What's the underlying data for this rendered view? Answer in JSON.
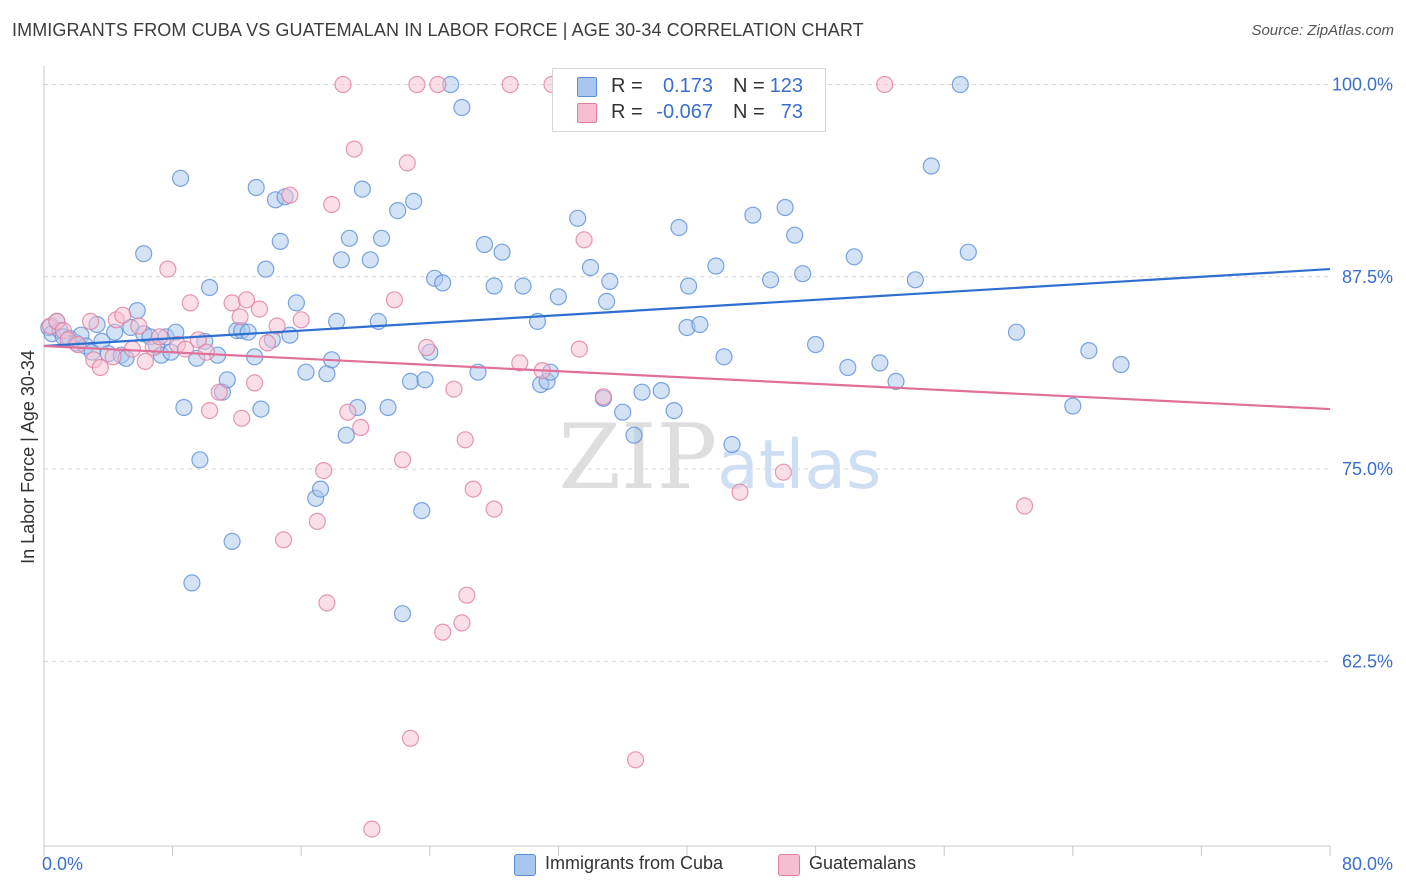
{
  "title": "IMMIGRANTS FROM CUBA VS GUATEMALAN IN LABOR FORCE | AGE 30-34 CORRELATION CHART",
  "source": "Source: ZipAtlas.com",
  "watermark": "ZIPatlas",
  "legend": {
    "r_label": "R =",
    "n_label": "N =",
    "series": [
      {
        "name": "Immigrants from Cuba",
        "r": "0.173",
        "n": "123",
        "color": "#a9c6ee",
        "edge": "#5b8ed8"
      },
      {
        "name": "Guatemalans",
        "r": "-0.067",
        "n": "73",
        "color": "#f6bfd1",
        "edge": "#e07ea0"
      }
    ]
  },
  "chart_data": {
    "type": "scatter",
    "title": "IMMIGRANTS FROM CUBA VS GUATEMALAN IN LABOR FORCE | AGE 30-34 CORRELATION CHART",
    "xlabel": "",
    "ylabel": "In Labor Force | Age 30-34",
    "xlim": [
      0,
      80
    ],
    "ylim": [
      50.5,
      101.2
    ],
    "x_tick_labels": [
      "0.0%",
      "80.0%"
    ],
    "y_ticks": [
      62.5,
      75.0,
      87.5,
      100.0
    ],
    "y_tick_labels": [
      "62.5%",
      "75.0%",
      "87.5%",
      "100.0%"
    ],
    "grid": true,
    "legend_position": "top-center",
    "series": [
      {
        "name": "Immigrants from Cuba",
        "color": "#5b8ed8",
        "trend": {
          "x": [
            0,
            80
          ],
          "y": [
            83.0,
            88.0
          ]
        },
        "points": [
          [
            0.3,
            84.2
          ],
          [
            0.5,
            83.8
          ],
          [
            0.8,
            84.6
          ],
          [
            1.0,
            84.0
          ],
          [
            1.2,
            83.6
          ],
          [
            1.6,
            83.5
          ],
          [
            2.0,
            83.2
          ],
          [
            2.3,
            83.7
          ],
          [
            2.6,
            83.0
          ],
          [
            3.0,
            82.6
          ],
          [
            3.3,
            84.4
          ],
          [
            3.6,
            83.3
          ],
          [
            4.0,
            82.5
          ],
          [
            4.4,
            83.9
          ],
          [
            4.8,
            82.4
          ],
          [
            5.1,
            82.2
          ],
          [
            5.4,
            84.2
          ],
          [
            5.8,
            85.3
          ],
          [
            6.2,
            83.8
          ],
          [
            6.6,
            83.6
          ],
          [
            6.2,
            89.0
          ],
          [
            7.0,
            83.0
          ],
          [
            7.3,
            82.4
          ],
          [
            7.6,
            83.6
          ],
          [
            7.9,
            82.6
          ],
          [
            8.2,
            83.9
          ],
          [
            8.5,
            93.9
          ],
          [
            8.7,
            79.0
          ],
          [
            9.2,
            67.6
          ],
          [
            9.5,
            82.2
          ],
          [
            9.7,
            75.6
          ],
          [
            10.0,
            83.3
          ],
          [
            10.3,
            86.8
          ],
          [
            10.8,
            82.4
          ],
          [
            11.1,
            80.0
          ],
          [
            11.4,
            80.8
          ],
          [
            11.7,
            70.3
          ],
          [
            12.0,
            84.0
          ],
          [
            12.3,
            84.0
          ],
          [
            12.7,
            83.9
          ],
          [
            13.1,
            82.3
          ],
          [
            13.2,
            93.3
          ],
          [
            13.5,
            78.9
          ],
          [
            13.8,
            88.0
          ],
          [
            14.2,
            83.4
          ],
          [
            14.4,
            92.5
          ],
          [
            14.7,
            89.8
          ],
          [
            15.0,
            92.7
          ],
          [
            15.3,
            83.7
          ],
          [
            15.7,
            85.8
          ],
          [
            16.3,
            81.3
          ],
          [
            16.9,
            73.1
          ],
          [
            17.2,
            73.7
          ],
          [
            17.6,
            81.2
          ],
          [
            17.9,
            82.1
          ],
          [
            18.2,
            84.6
          ],
          [
            18.5,
            88.6
          ],
          [
            18.8,
            77.2
          ],
          [
            19.0,
            90.0
          ],
          [
            19.5,
            79.0
          ],
          [
            19.8,
            93.2
          ],
          [
            20.3,
            88.6
          ],
          [
            20.8,
            84.6
          ],
          [
            21.0,
            90.0
          ],
          [
            21.4,
            79.0
          ],
          [
            22.0,
            91.8
          ],
          [
            22.3,
            65.6
          ],
          [
            22.8,
            80.7
          ],
          [
            23.0,
            92.4
          ],
          [
            23.5,
            72.3
          ],
          [
            23.7,
            80.8
          ],
          [
            24.0,
            82.6
          ],
          [
            24.3,
            87.4
          ],
          [
            24.8,
            87.1
          ],
          [
            25.3,
            100.0
          ],
          [
            26.0,
            98.5
          ],
          [
            27.0,
            81.3
          ],
          [
            27.4,
            89.6
          ],
          [
            28.0,
            86.9
          ],
          [
            28.5,
            89.1
          ],
          [
            29.8,
            86.9
          ],
          [
            30.7,
            84.6
          ],
          [
            30.9,
            80.5
          ],
          [
            31.3,
            80.7
          ],
          [
            31.5,
            81.3
          ],
          [
            32.0,
            86.2
          ],
          [
            32.6,
            100.0
          ],
          [
            33.2,
            91.3
          ],
          [
            34.0,
            88.1
          ],
          [
            34.8,
            79.6
          ],
          [
            35.0,
            85.9
          ],
          [
            35.2,
            87.2
          ],
          [
            36.0,
            78.7
          ],
          [
            36.7,
            77.2
          ],
          [
            37.2,
            80.0
          ],
          [
            38.0,
            100.0
          ],
          [
            38.4,
            80.1
          ],
          [
            39.2,
            78.8
          ],
          [
            39.5,
            90.7
          ],
          [
            40.0,
            84.2
          ],
          [
            40.1,
            86.9
          ],
          [
            40.8,
            84.4
          ],
          [
            41.8,
            88.2
          ],
          [
            42.3,
            82.3
          ],
          [
            42.8,
            76.6
          ],
          [
            44.1,
            91.5
          ],
          [
            45.2,
            87.3
          ],
          [
            46.1,
            92.0
          ],
          [
            46.7,
            90.2
          ],
          [
            47.2,
            87.7
          ],
          [
            48.0,
            83.1
          ],
          [
            50.0,
            81.6
          ],
          [
            50.4,
            88.8
          ],
          [
            52.0,
            81.9
          ],
          [
            53.0,
            80.7
          ],
          [
            54.2,
            87.3
          ],
          [
            55.2,
            94.7
          ],
          [
            57.0,
            100.0
          ],
          [
            57.5,
            89.1
          ],
          [
            60.5,
            83.9
          ],
          [
            64.0,
            79.1
          ],
          [
            65.0,
            82.7
          ],
          [
            67.0,
            81.8
          ]
        ]
      },
      {
        "name": "Guatemalans",
        "color": "#e07ea0",
        "trend": {
          "x": [
            0,
            80
          ],
          "y": [
            83.0,
            78.9
          ]
        },
        "points": [
          [
            0.4,
            84.3
          ],
          [
            0.8,
            84.6
          ],
          [
            1.2,
            84.0
          ],
          [
            1.5,
            83.4
          ],
          [
            2.1,
            83.1
          ],
          [
            2.9,
            84.6
          ],
          [
            3.1,
            82.1
          ],
          [
            3.5,
            81.6
          ],
          [
            4.3,
            82.3
          ],
          [
            4.5,
            84.7
          ],
          [
            4.9,
            85.0
          ],
          [
            5.5,
            82.8
          ],
          [
            5.9,
            84.3
          ],
          [
            6.3,
            82.0
          ],
          [
            6.8,
            82.9
          ],
          [
            7.2,
            83.6
          ],
          [
            7.7,
            88.0
          ],
          [
            8.3,
            83.1
          ],
          [
            8.8,
            82.8
          ],
          [
            9.1,
            85.8
          ],
          [
            9.6,
            83.4
          ],
          [
            10.1,
            82.6
          ],
          [
            10.3,
            78.8
          ],
          [
            10.9,
            80.0
          ],
          [
            11.7,
            85.8
          ],
          [
            12.2,
            84.9
          ],
          [
            12.3,
            78.3
          ],
          [
            12.6,
            86.0
          ],
          [
            13.1,
            80.6
          ],
          [
            13.4,
            85.4
          ],
          [
            13.9,
            83.2
          ],
          [
            14.5,
            84.3
          ],
          [
            14.9,
            70.4
          ],
          [
            15.3,
            92.8
          ],
          [
            16.0,
            84.7
          ],
          [
            17.0,
            71.6
          ],
          [
            17.4,
            74.9
          ],
          [
            17.6,
            66.3
          ],
          [
            17.9,
            92.2
          ],
          [
            18.6,
            100.0
          ],
          [
            18.9,
            78.7
          ],
          [
            19.3,
            95.8
          ],
          [
            19.7,
            77.7
          ],
          [
            20.4,
            51.6
          ],
          [
            21.8,
            86.0
          ],
          [
            22.3,
            75.6
          ],
          [
            22.6,
            94.9
          ],
          [
            22.8,
            57.5
          ],
          [
            23.2,
            100.0
          ],
          [
            23.8,
            82.9
          ],
          [
            24.5,
            100.0
          ],
          [
            24.8,
            64.4
          ],
          [
            25.5,
            80.2
          ],
          [
            26.0,
            65.0
          ],
          [
            26.2,
            76.9
          ],
          [
            26.3,
            66.8
          ],
          [
            26.7,
            73.7
          ],
          [
            28.0,
            72.4
          ],
          [
            29.0,
            100.0
          ],
          [
            29.6,
            81.9
          ],
          [
            31.0,
            81.4
          ],
          [
            31.6,
            100.0
          ],
          [
            33.3,
            82.8
          ],
          [
            33.6,
            89.9
          ],
          [
            34.8,
            79.7
          ],
          [
            36.3,
            100.0
          ],
          [
            36.7,
            100.0
          ],
          [
            36.8,
            56.1
          ],
          [
            37.9,
            100.0
          ],
          [
            43.3,
            73.5
          ],
          [
            46.0,
            74.8
          ],
          [
            52.3,
            100.0
          ],
          [
            61.0,
            72.6
          ]
        ]
      }
    ]
  }
}
